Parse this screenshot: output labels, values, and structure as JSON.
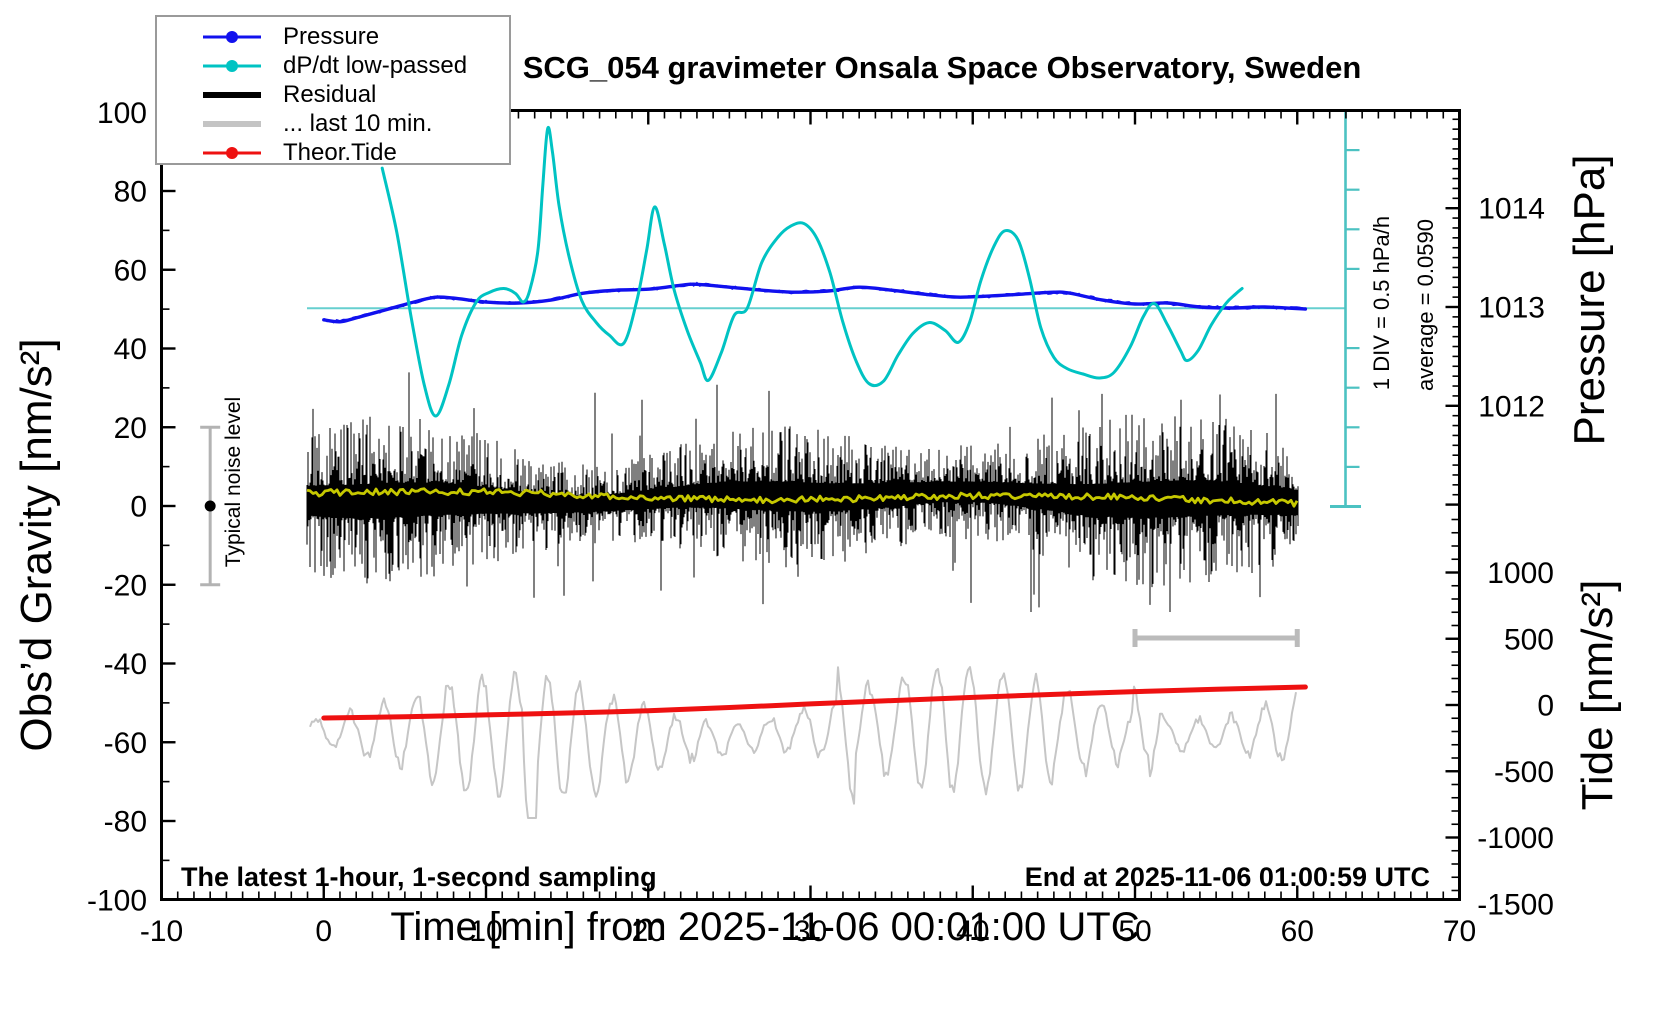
{
  "title": "SCG_054 gravimeter Onsala Space Observatory, Sweden",
  "annotations": {
    "noise_level": "Typical noise level",
    "div_scale": "1 DIV = 0.5 hPa/h",
    "average": "average = 0.0590",
    "sampling_note": "The latest 1-hour, 1-second sampling",
    "end_time": "End at 2025-11-06 01:00:59 UTC"
  },
  "axes": {
    "x": {
      "title": "Time [min] from 2025-11-06 00:01:00 UTC",
      "min": -10,
      "max": 70,
      "major_step": 10,
      "minor_step": 1,
      "tick_labels": [
        -10,
        0,
        10,
        20,
        30,
        40,
        50,
        60,
        70
      ]
    },
    "gravity": {
      "title": "Obs’d Gravity [nm/s²]",
      "min": -100,
      "max": 100,
      "major_step": 20,
      "minor_step": 10,
      "tick_labels": [
        -100,
        -80,
        -60,
        -40,
        -20,
        0,
        20,
        40,
        60,
        80,
        100
      ]
    },
    "pressure": {
      "title": "Pressure [hPa]",
      "minor_step": 0.1,
      "tick_labels": [
        1012,
        1013,
        1014
      ]
    },
    "tide": {
      "title": "Tide [nm/s²]",
      "major_step": 500,
      "minor_step": 100,
      "tick_labels": [
        -1500,
        -1000,
        -500,
        0,
        500,
        1000
      ]
    }
  },
  "legend": {
    "items": [
      {
        "label": "Pressure",
        "color": "#1111ee",
        "thick": false,
        "dot": true
      },
      {
        "label": "dP/dt low-passed",
        "color": "#00c3c3",
        "thick": false,
        "dot": true
      },
      {
        "label": "Residual",
        "color": "#000000",
        "thick": true,
        "dot": false
      },
      {
        "label": "... last 10 min.",
        "color": "#c4c4c4",
        "thick": true,
        "dot": false
      },
      {
        "label": "Theor.Tide",
        "color": "#ee1111",
        "thick": false,
        "dot": true
      }
    ]
  },
  "colors": {
    "pressure": "#1111ee",
    "dpdt": "#00c3c3",
    "dpdt_ref": "#66cfcf",
    "scalebar": "#4cc2c2",
    "residual": "#000000",
    "residual_lowpass": "#c6c800",
    "last10": "#c6c6c6",
    "bracket": "#bbbbbb",
    "noise_bar": "#b3b3b3",
    "tide": "#ee1111",
    "frame": "#000000"
  },
  "chart_data": {
    "type": "line",
    "title": "SCG_054 gravimeter Onsala Space Observatory, Sweden",
    "xlabel": "Time [min] from 2025-11-06 00:01:00 UTC",
    "x_range_min": [
      -10,
      70
    ],
    "gravity_range_nm_s2": [
      -100,
      100
    ],
    "tide_range_nm_s2": [
      -1500,
      1500
    ],
    "pressure_axis_hPa": [
      1011,
      1015
    ],
    "grid": false,
    "legend_position": "top-left",
    "scale_bar": {
      "one_div_equals_hPa_per_h": 0.5,
      "divisions": 10,
      "average_hPa_per_h": 0.059
    },
    "noise_level_bar": {
      "t_min": -7,
      "center_nm_s2": 0,
      "range_nm_s2": [
        -20,
        20
      ]
    },
    "last10_bracket_min": [
      50,
      60
    ],
    "series": [
      {
        "name": "Pressure",
        "units": [
          "min",
          "hPa"
        ],
        "points": [
          [
            0,
            1012.87
          ],
          [
            1,
            1012.85
          ],
          [
            2,
            1012.89
          ],
          [
            4,
            1012.98
          ],
          [
            6,
            1013.07
          ],
          [
            7,
            1013.1
          ],
          [
            8,
            1013.09
          ],
          [
            10,
            1013.05
          ],
          [
            12,
            1013.04
          ],
          [
            14,
            1013.07
          ],
          [
            16,
            1013.14
          ],
          [
            18,
            1013.17
          ],
          [
            20,
            1013.18
          ],
          [
            22,
            1013.22
          ],
          [
            23,
            1013.23
          ],
          [
            25,
            1013.2
          ],
          [
            27,
            1013.17
          ],
          [
            29,
            1013.15
          ],
          [
            31,
            1013.16
          ],
          [
            33,
            1013.2
          ],
          [
            35,
            1013.17
          ],
          [
            37,
            1013.13
          ],
          [
            39,
            1013.1
          ],
          [
            41,
            1013.11
          ],
          [
            43,
            1013.13
          ],
          [
            45,
            1013.15
          ],
          [
            46,
            1013.14
          ],
          [
            48,
            1013.07
          ],
          [
            50,
            1013.03
          ],
          [
            52,
            1013.04
          ],
          [
            54,
            1013.0
          ],
          [
            56,
            1012.99
          ],
          [
            58,
            1013.0
          ],
          [
            60.5,
            1012.98
          ]
        ]
      },
      {
        "name": "dP/dt low-passed",
        "units": [
          "min",
          "hPa/h"
        ],
        "points": [
          [
            3.6,
            1.77
          ],
          [
            4.5,
            0.96
          ],
          [
            5.4,
            -0.13
          ],
          [
            6.2,
            -0.97
          ],
          [
            6.9,
            -1.36
          ],
          [
            7.7,
            -0.97
          ],
          [
            8.5,
            -0.34
          ],
          [
            9.4,
            0.08
          ],
          [
            10.2,
            0.2
          ],
          [
            11.1,
            0.25
          ],
          [
            11.8,
            0.19
          ],
          [
            12.3,
            0.08
          ],
          [
            12.7,
            0.23
          ],
          [
            13.2,
            0.73
          ],
          [
            13.5,
            1.55
          ],
          [
            13.8,
            2.27
          ],
          [
            14.1,
            1.97
          ],
          [
            14.5,
            1.3
          ],
          [
            15.1,
            0.67
          ],
          [
            15.9,
            0.1
          ],
          [
            16.8,
            -0.18
          ],
          [
            17.6,
            -0.34
          ],
          [
            18.5,
            -0.44
          ],
          [
            19.3,
            0.1
          ],
          [
            19.9,
            0.73
          ],
          [
            20.4,
            1.28
          ],
          [
            21.0,
            0.8
          ],
          [
            21.6,
            0.23
          ],
          [
            22.4,
            -0.28
          ],
          [
            23.2,
            -0.68
          ],
          [
            23.7,
            -0.91
          ],
          [
            24.5,
            -0.56
          ],
          [
            25.3,
            -0.09
          ],
          [
            26.1,
            0.0
          ],
          [
            27.0,
            0.58
          ],
          [
            28.0,
            0.9
          ],
          [
            28.8,
            1.04
          ],
          [
            29.6,
            1.07
          ],
          [
            30.4,
            0.88
          ],
          [
            31.2,
            0.45
          ],
          [
            32.0,
            -0.18
          ],
          [
            32.8,
            -0.66
          ],
          [
            33.6,
            -0.95
          ],
          [
            34.5,
            -0.92
          ],
          [
            35.4,
            -0.59
          ],
          [
            36.3,
            -0.32
          ],
          [
            37.3,
            -0.18
          ],
          [
            38.3,
            -0.28
          ],
          [
            39.1,
            -0.43
          ],
          [
            39.8,
            -0.18
          ],
          [
            40.5,
            0.35
          ],
          [
            41.3,
            0.78
          ],
          [
            42.0,
            0.98
          ],
          [
            42.8,
            0.86
          ],
          [
            43.5,
            0.38
          ],
          [
            44.2,
            -0.25
          ],
          [
            45.0,
            -0.62
          ],
          [
            45.8,
            -0.76
          ],
          [
            46.8,
            -0.83
          ],
          [
            47.8,
            -0.88
          ],
          [
            48.7,
            -0.81
          ],
          [
            49.7,
            -0.49
          ],
          [
            50.5,
            -0.11
          ],
          [
            51.2,
            0.06
          ],
          [
            52.0,
            -0.21
          ],
          [
            52.8,
            -0.53
          ],
          [
            53.2,
            -0.66
          ],
          [
            53.9,
            -0.53
          ],
          [
            54.7,
            -0.21
          ],
          [
            55.6,
            0.06
          ],
          [
            56.2,
            0.18
          ],
          [
            56.6,
            0.25
          ]
        ]
      },
      {
        "name": "Theor.Tide",
        "units": [
          "min",
          "nm/s2"
        ],
        "points": [
          [
            0,
            -98
          ],
          [
            5,
            -88
          ],
          [
            10,
            -75
          ],
          [
            15,
            -60
          ],
          [
            20,
            -44
          ],
          [
            25,
            -19
          ],
          [
            30,
            8
          ],
          [
            35,
            33
          ],
          [
            40,
            57
          ],
          [
            45,
            80
          ],
          [
            50,
            101
          ],
          [
            55,
            119
          ],
          [
            60.5,
            136
          ]
        ]
      },
      {
        "name": "Residual",
        "units": [
          "min",
          "nm/s2"
        ],
        "synthetic_noise": true,
        "t_span": [
          0,
          60.3
        ],
        "mean_nm_s2": 2,
        "typical_amplitude_nm_s2": 12,
        "max_excursion_nm_s2": 30
      },
      {
        "name": "Residual low-passed",
        "units": [
          "min",
          "nm/s2"
        ],
        "synthetic_noise": true,
        "t_span": [
          0,
          60.3
        ],
        "mean_nm_s2": 2,
        "amplitude_nm_s2": 2
      },
      {
        "name": "... last 10 min.",
        "units": [
          "min",
          "nm/s2 (tide scale)"
        ],
        "synthetic_noise": true,
        "t_span": [
          0,
          60
        ],
        "center_tide": -250,
        "typical_amplitude_tide": 400,
        "max_excursion_tide": 800
      }
    ]
  }
}
